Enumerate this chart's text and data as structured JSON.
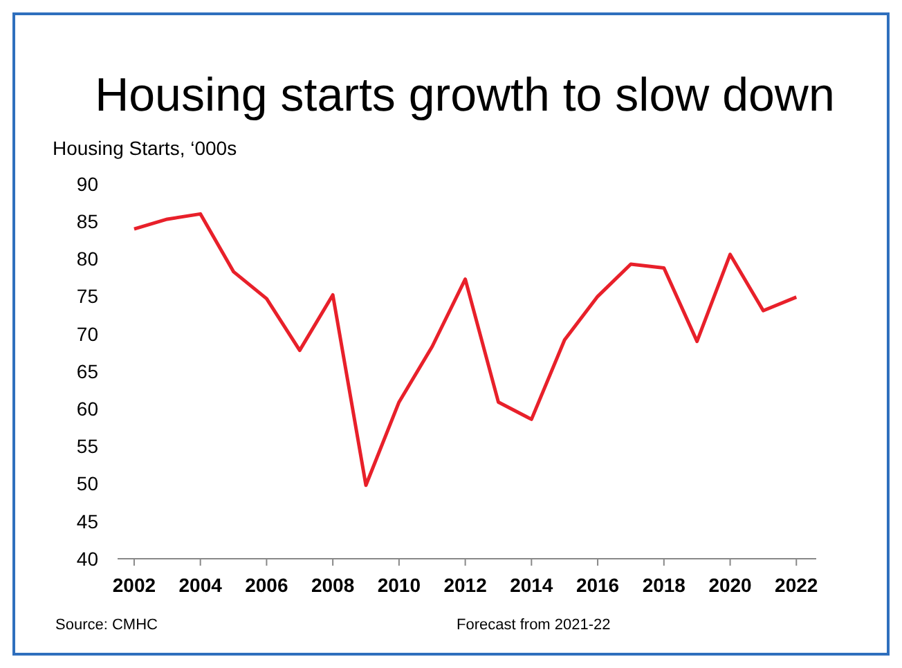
{
  "chart_data": {
    "type": "line",
    "title": "Housing starts growth to slow down",
    "ylabel": "Housing Starts, ‘000s",
    "x": [
      2002,
      2003,
      2004,
      2005,
      2006,
      2007,
      2008,
      2009,
      2010,
      2011,
      2012,
      2013,
      2014,
      2015,
      2016,
      2017,
      2018,
      2019,
      2020,
      2021,
      2022
    ],
    "series": [
      {
        "color": "#e8202a",
        "values": [
          84,
          85.3,
          86,
          78.3,
          74.7,
          67.8,
          75.2,
          49.8,
          60.9,
          68.3,
          77.3,
          60.9,
          58.6,
          69.2,
          75,
          79.3,
          78.8,
          69,
          80.6,
          73.1,
          74.9
        ]
      }
    ],
    "xlim": [
      2001.5,
      2022.6
    ],
    "xticks": [
      2002,
      2004,
      2006,
      2008,
      2010,
      2012,
      2014,
      2016,
      2018,
      2020,
      2022
    ],
    "ylim": [
      40,
      90
    ],
    "yticks": [
      40,
      45,
      50,
      55,
      60,
      65,
      70,
      75,
      80,
      85,
      90
    ],
    "grid": false,
    "marker": "none",
    "line_style": "solid",
    "annotations": [
      "Source: CMHC",
      "Forecast from 2021-22"
    ]
  }
}
